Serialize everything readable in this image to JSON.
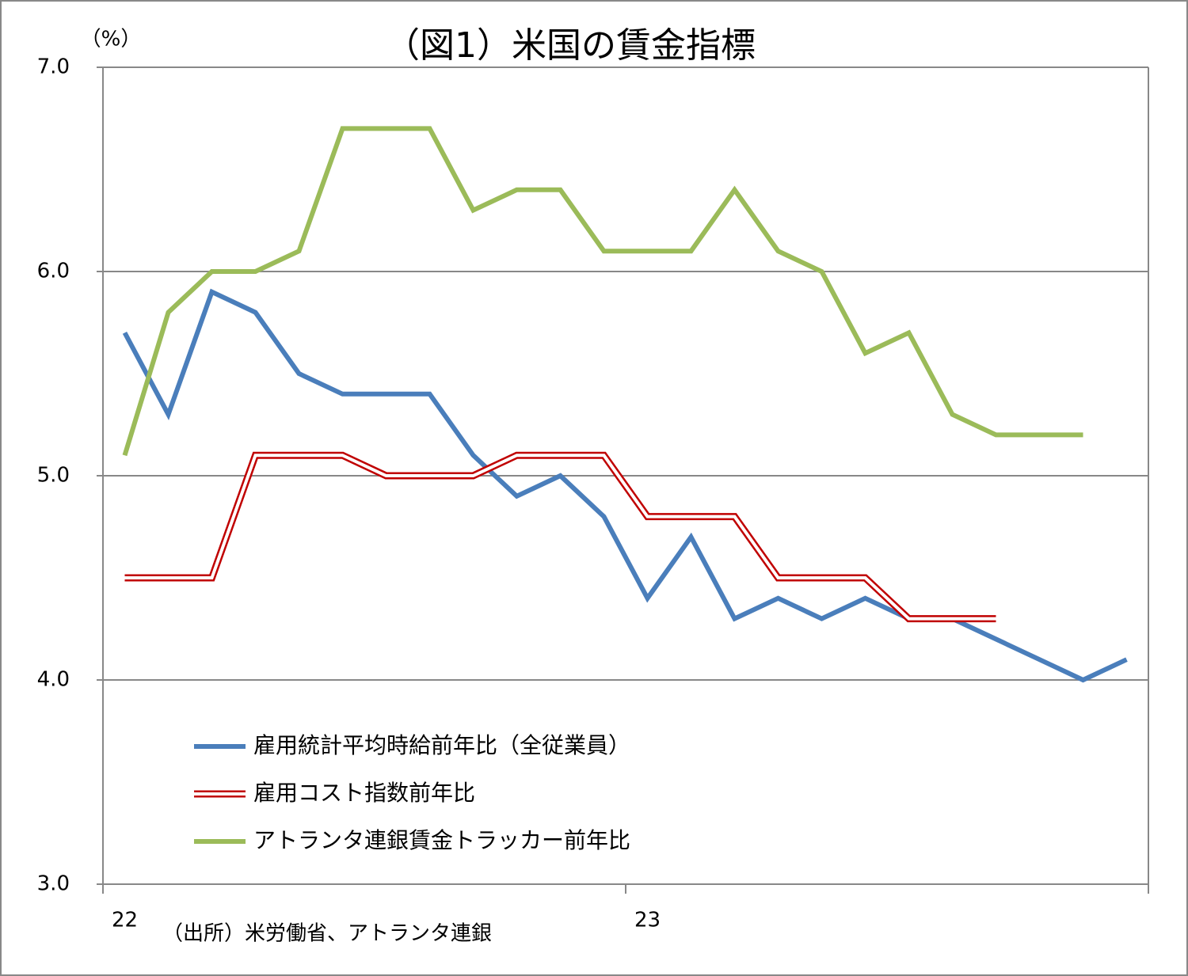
{
  "chart_data": {
    "type": "line",
    "title": "（図1）米国の賃金指標",
    "y_unit": "（%）",
    "source": "（出所）米労働省、アトランタ連銀",
    "categories": [
      "22",
      null,
      null,
      null,
      null,
      null,
      null,
      null,
      null,
      null,
      null,
      null,
      "23",
      null,
      null,
      null,
      null,
      null,
      null,
      null,
      null,
      null,
      null,
      null
    ],
    "series": [
      {
        "name": "雇用統計平均時給前年比（全従業員）",
        "color": "#4a7ebb",
        "style": "solid",
        "values": [
          5.7,
          5.3,
          5.9,
          5.8,
          5.5,
          5.4,
          5.4,
          5.4,
          5.1,
          4.9,
          5.0,
          4.8,
          4.4,
          4.7,
          4.3,
          4.4,
          4.3,
          4.4,
          4.3,
          4.3,
          4.2,
          4.1,
          4.0,
          4.1
        ]
      },
      {
        "name": "雇用コスト指数前年比",
        "color": "#c00000",
        "style": "double",
        "values": [
          4.5,
          4.5,
          4.5,
          5.1,
          5.1,
          5.1,
          5.0,
          5.0,
          5.0,
          5.1,
          5.1,
          5.1,
          4.8,
          4.8,
          4.8,
          4.5,
          4.5,
          4.5,
          4.3,
          4.3,
          4.3,
          null,
          null,
          null
        ]
      },
      {
        "name": "アトランタ連銀賃金トラッカー前年比",
        "color": "#9bbb59",
        "style": "solid",
        "values": [
          5.1,
          5.8,
          6.0,
          6.0,
          6.1,
          6.7,
          6.7,
          6.7,
          6.3,
          6.4,
          6.4,
          6.1,
          6.1,
          6.1,
          6.4,
          6.1,
          6.0,
          5.6,
          5.7,
          5.3,
          5.2,
          5.2,
          5.2,
          null
        ]
      }
    ],
    "ylim": [
      3.0,
      7.0
    ],
    "yticks": [
      {
        "value": 3,
        "label": "3.0"
      },
      {
        "value": 4,
        "label": "4.0"
      },
      {
        "value": 5,
        "label": "5.0"
      },
      {
        "value": 6,
        "label": "6.0"
      },
      {
        "value": 7,
        "label": "7.0"
      }
    ],
    "grid": true,
    "legend": "lower left"
  }
}
